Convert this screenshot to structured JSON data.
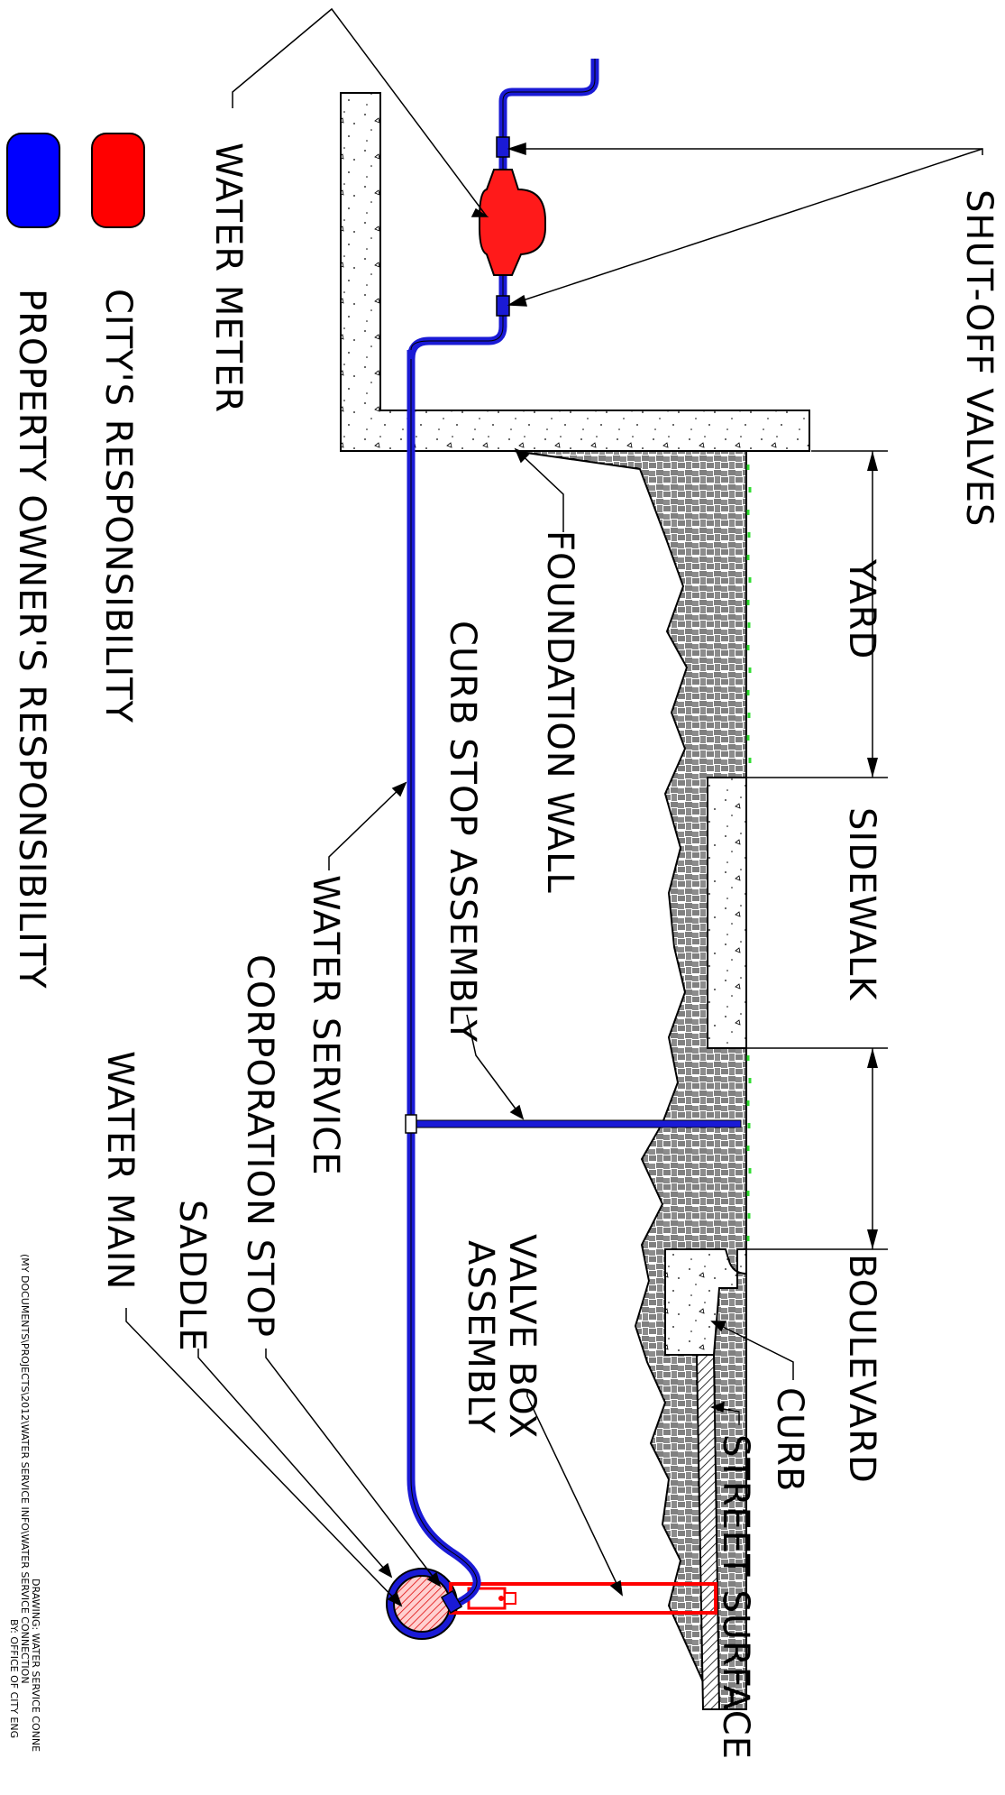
{
  "labels": {
    "water_meter": "WATER METER",
    "shut_off_valves": "SHUT-OFF VALVES",
    "yard": "YARD",
    "sidewalk": "SIDEWALK",
    "boulevard": "BOULEVARD",
    "foundation_wall": "FOUNDATION WALL",
    "curb_stop_assembly": "CURB STOP ASSEMBLY",
    "water_service": "WATER SERVICE",
    "corporation_stop": "CORPORATION STOP",
    "saddle": "SADDLE",
    "water_main": "WATER MAIN",
    "valve_box_line1": "VALVE BOX",
    "valve_box_line2": "ASSEMBLY",
    "curb": "CURB",
    "street_surface": "STREET SURFACE"
  },
  "legend": {
    "city": "CITY'S RESPONSIBILITY",
    "owner": "PROPERTY OWNER'S RESPONSIBILITY",
    "city_color": "#ff0000",
    "owner_color": "#0000ff"
  },
  "title_block": {
    "line1": "DRAWING: WATER SERVICE CONNE",
    "line2": "(MY DOCUMENTS\\PROJECTS\\2012\\WATER SERVICE INFO\\WATER SERVICE CONNECTION",
    "line3": "BY: OFFICE OF CITY ENG"
  },
  "colors": {
    "pipe_blue": "#1a1ad6",
    "meter_red": "#ff1a1a",
    "grass_green": "#33dd33",
    "concrete": "#ffffff",
    "line": "#000000"
  }
}
